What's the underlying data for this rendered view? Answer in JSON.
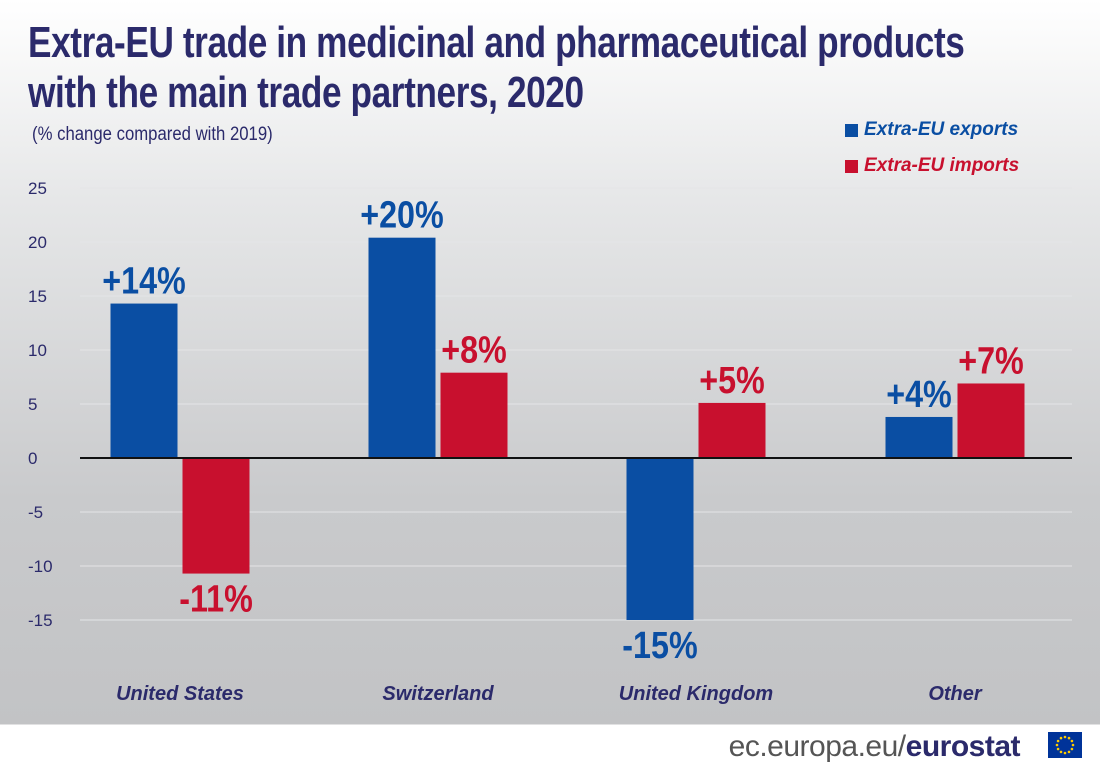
{
  "title_line1": "Extra-EU trade in medicinal and pharmaceutical products",
  "title_line2": "with the main trade partners, 2020",
  "subtitle": "(% change compared with 2019)",
  "footer": {
    "domain": "ec.europa.eu/",
    "brand": "eurostat"
  },
  "colors": {
    "exports": "#0a4ea3",
    "imports": "#c8102e",
    "title": "#2b2a6b"
  },
  "chart_data": {
    "type": "bar",
    "title": "Extra-EU trade in medicinal and pharmaceutical products with the main trade partners, 2020",
    "subtitle": "(% change compared with 2019)",
    "categories": [
      "United States",
      "Switzerland",
      "United Kingdom",
      "Other"
    ],
    "series": [
      {
        "name": "Extra-EU exports",
        "values": [
          14.3,
          20.4,
          -15.0,
          3.8
        ],
        "labels": [
          "+14%",
          "+20%",
          "-15%",
          "+4%"
        ]
      },
      {
        "name": "Extra-EU imports",
        "values": [
          -10.7,
          7.9,
          5.1,
          6.9
        ],
        "labels": [
          "-11%",
          "+8%",
          "+5%",
          "+7%"
        ]
      }
    ],
    "yticks": [
      "25",
      "20",
      "15",
      "10",
      "5",
      "0",
      "-5",
      "-10",
      "-15"
    ],
    "ylim": [
      -18,
      25
    ],
    "grid": true,
    "legend": "top-right"
  }
}
